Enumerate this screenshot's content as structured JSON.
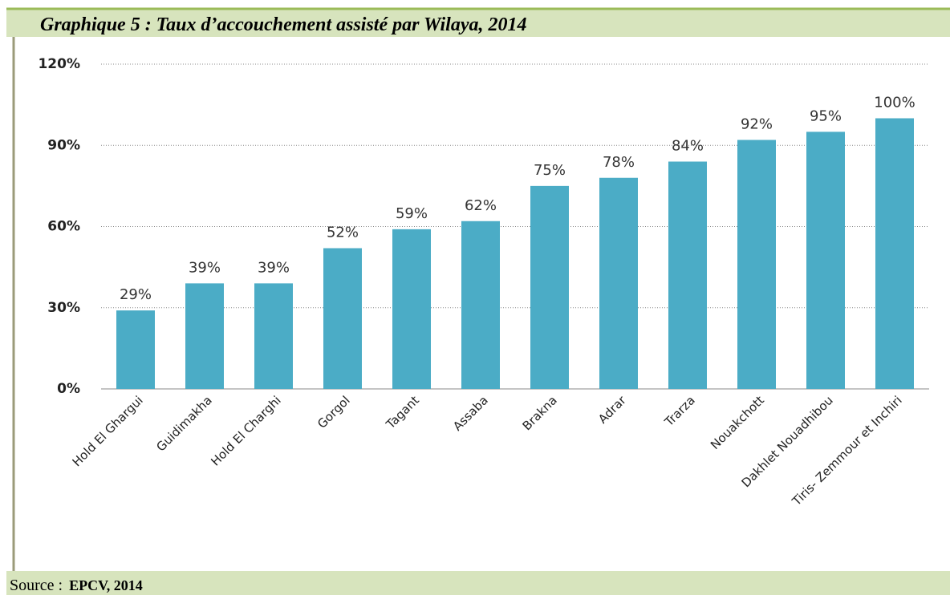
{
  "chart_data": {
    "type": "bar",
    "title": "Graphique 5 : Taux d’accouchement assisté par Wilaya, 2014",
    "categories": [
      "Hold El Ghargui",
      "Guidimakha",
      "Hold El Charghi",
      "Gorgol",
      "Tagant",
      "Assaba",
      "Brakna",
      "Adrar",
      "Trarza",
      "Nouakchott",
      "Dakhlet Nouadhibou",
      "Tiris- Zemmour et Inchiri"
    ],
    "values": [
      29,
      39,
      39,
      52,
      59,
      62,
      75,
      78,
      84,
      92,
      95,
      100
    ],
    "value_labels": [
      "29%",
      "39%",
      "39%",
      "52%",
      "59%",
      "62%",
      "75%",
      "78%",
      "84%",
      "92%",
      "95%",
      "100%"
    ],
    "color": "#4bacc6",
    "ylim": [
      0,
      120
    ],
    "yticks": [
      {
        "value": 0,
        "label": "0%"
      },
      {
        "value": 30,
        "label": "30%"
      },
      {
        "value": 60,
        "label": "60%"
      },
      {
        "value": 90,
        "label": "90%"
      },
      {
        "value": 120,
        "label": "120%"
      }
    ],
    "grid": true,
    "source_label": "Source :",
    "source": "EPCV, 2014"
  }
}
